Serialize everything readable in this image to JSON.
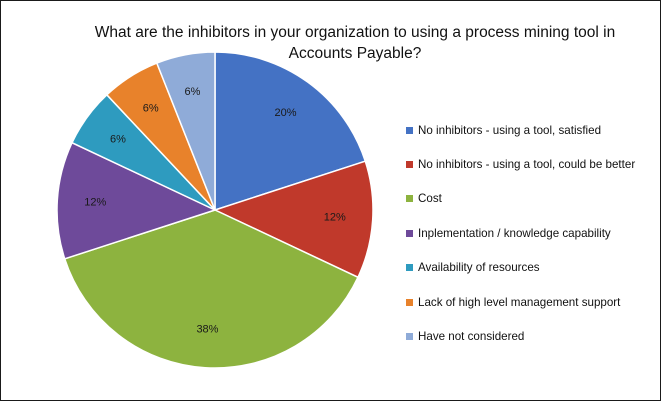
{
  "chart_data": {
    "type": "pie",
    "title_lines": [
      "What are the inhibitors in your organization to using a process mining tool in",
      "Accounts Payable?"
    ],
    "legend_position": "right",
    "categories": [
      "No inhibitors - using a tool, satisfied",
      "No inhibitors - using a tool, could be better",
      "Cost",
      "Inplementation / knowledge capability",
      "Availability of resources",
      "Lack of high level management support",
      "Have not considered"
    ],
    "values": [
      20,
      12,
      38,
      12,
      6,
      6,
      6
    ],
    "data_labels": [
      "20%",
      "12%",
      "38%",
      "12%",
      "6%",
      "6%",
      "6%"
    ],
    "colors": [
      "#4472c4",
      "#c0392b",
      "#8db33f",
      "#6e4a9a",
      "#2e9bbf",
      "#e8822b",
      "#8fabd8"
    ]
  }
}
